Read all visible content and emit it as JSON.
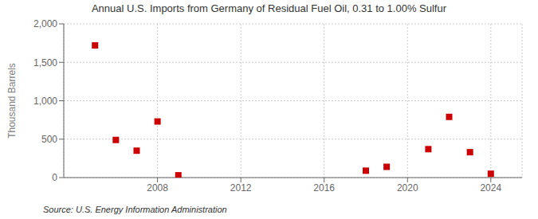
{
  "chart_data": {
    "type": "scatter",
    "title": "Annual U.S. Imports from Germany of Residual Fuel Oil, 0.31 to 1.00% Sulfur",
    "y_label": "Thousand Barrels",
    "annotations": [
      "Source: U.S. Energy Information Administration"
    ],
    "x": [
      2005,
      2006,
      2007,
      2008,
      2009,
      2018,
      2019,
      2021,
      2022,
      2023,
      2024
    ],
    "values": [
      1720,
      490,
      350,
      730,
      30,
      90,
      140,
      370,
      790,
      330,
      50
    ],
    "color": "#cc0000",
    "marker": "square",
    "xlim": [
      2003.5,
      2025.5
    ],
    "xticks": [
      2008,
      2012,
      2016,
      2020,
      2024
    ],
    "ylim": [
      0,
      2000
    ],
    "yticks": [
      0,
      500,
      {
        "value": 1000,
        "label": "1,000"
      },
      {
        "value": 1500,
        "label": "1,500"
      },
      {
        "value": 2000,
        "label": "2,000"
      }
    ],
    "grid": true
  }
}
